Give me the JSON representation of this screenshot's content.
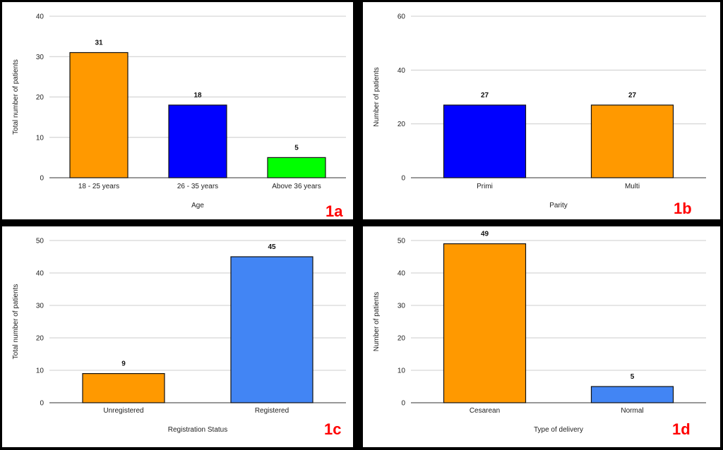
{
  "chart_data": [
    {
      "type": "bar",
      "panel_tag": "1a",
      "categories": [
        "18 - 25 years",
        "26 - 35 years",
        "Above 36 years"
      ],
      "values": [
        31,
        18,
        5
      ],
      "value_labels": [
        "31",
        "18",
        "5"
      ],
      "colors": [
        "#ff9900",
        "#0000ff",
        "#00ff00"
      ],
      "xlabel": "Age",
      "ylabel": "Total number of patients",
      "ylim": [
        0,
        40
      ],
      "yticks": [
        0,
        10,
        20,
        30,
        40
      ],
      "grid": true
    },
    {
      "type": "bar",
      "panel_tag": "1b",
      "categories": [
        "Primi",
        "Multi"
      ],
      "values": [
        27,
        27
      ],
      "value_labels": [
        "27",
        "27"
      ],
      "colors": [
        "#0000ff",
        "#ff9900"
      ],
      "xlabel": "Parity",
      "ylabel": "Number of patients",
      "ylim": [
        0,
        60
      ],
      "yticks": [
        0,
        20,
        40,
        60
      ],
      "grid": true
    },
    {
      "type": "bar",
      "panel_tag": "1c",
      "categories": [
        "Unregistered",
        "Registered"
      ],
      "values": [
        9,
        45
      ],
      "value_labels": [
        "9",
        "45"
      ],
      "colors": [
        "#ff9900",
        "#4285f4"
      ],
      "xlabel": "Registration Status",
      "ylabel": "Total number of patients",
      "ylim": [
        0,
        50
      ],
      "yticks": [
        0,
        10,
        20,
        30,
        40,
        50
      ],
      "grid": true
    },
    {
      "type": "bar",
      "panel_tag": "1d",
      "categories": [
        "Cesarean",
        "Normal"
      ],
      "values": [
        49,
        5
      ],
      "value_labels": [
        "49",
        "5"
      ],
      "colors": [
        "#ff9900",
        "#4285f4"
      ],
      "xlabel": "Type of delivery",
      "ylabel": "Number of patients",
      "ylim": [
        0,
        50
      ],
      "yticks": [
        0,
        10,
        20,
        30,
        40,
        50
      ],
      "grid": true
    }
  ]
}
